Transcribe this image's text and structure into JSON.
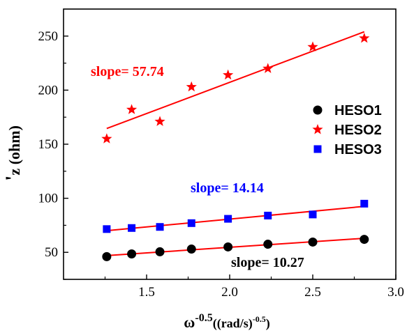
{
  "chart_data": {
    "type": "scatter",
    "xlabel": {
      "base": "ω",
      "sup": "-0.5",
      "unit_base": "((rad/s)",
      "unit_sup": "-0.5",
      "unit_close": ")"
    },
    "ylabel": {
      "prime": "'",
      "text": "z (ohm)"
    },
    "xlim": [
      1.0,
      3.0
    ],
    "ylim": [
      25,
      275
    ],
    "xticks": [
      1.5,
      2.0,
      2.5,
      3.0
    ],
    "xtick_labels": [
      "1.5",
      "2.0",
      "2.5",
      "3.0"
    ],
    "yticks": [
      50,
      100,
      150,
      200,
      250
    ],
    "ytick_labels": [
      "50",
      "100",
      "150",
      "200",
      "250"
    ],
    "grid": false,
    "legend_position": "right",
    "x": [
      1.26,
      1.41,
      1.58,
      1.77,
      1.99,
      2.23,
      2.5,
      2.81
    ],
    "series": [
      {
        "name": "HESO1",
        "marker": "circle",
        "color": "#000000",
        "values": [
          46,
          48.5,
          50.5,
          53,
          55,
          57.5,
          59.5,
          62
        ],
        "fit": {
          "x": [
            1.26,
            2.81
          ],
          "y": [
            47,
            63
          ]
        },
        "slope_label": "slope= 10.27",
        "slope_color": "#000000"
      },
      {
        "name": "HESO2",
        "marker": "star",
        "color": "#ff0000",
        "values": [
          155,
          182,
          171,
          203,
          214,
          220,
          240,
          248
        ],
        "fit": {
          "x": [
            1.26,
            2.81
          ],
          "y": [
            164.5,
            254
          ]
        },
        "slope_label": "slope= 57.74",
        "slope_color": "#ff0000"
      },
      {
        "name": "HESO3",
        "marker": "square",
        "color": "#0000ff",
        "values": [
          71.5,
          72.5,
          73.5,
          77,
          81,
          84,
          85,
          95
        ],
        "fit": {
          "x": [
            1.26,
            2.81
          ],
          "y": [
            70,
            92.5
          ]
        },
        "slope_label": "slope= 14.14",
        "slope_color": "#0000ff"
      }
    ],
    "line_color": "#ff0000"
  }
}
